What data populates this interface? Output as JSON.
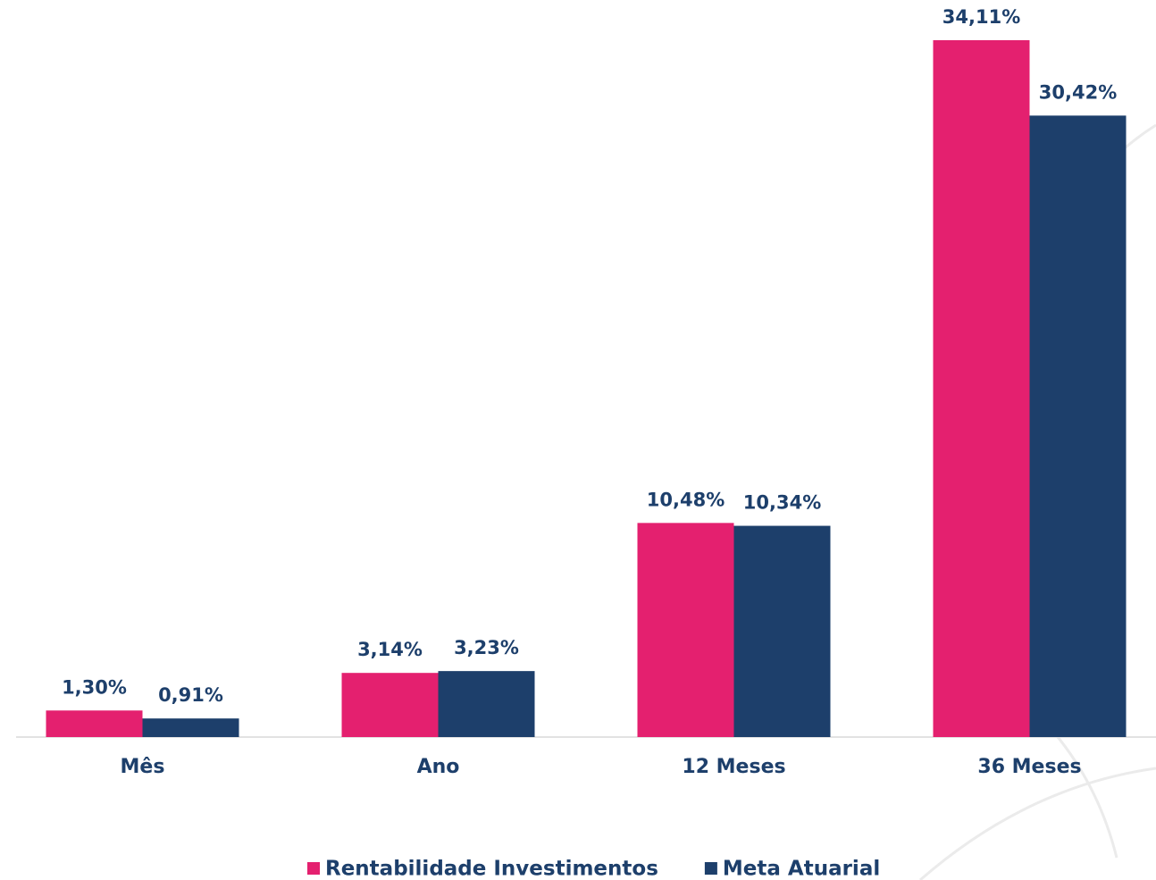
{
  "chart_data": {
    "type": "bar",
    "categories": [
      "Mês",
      "Ano",
      "12 Meses",
      "36 Meses"
    ],
    "series": [
      {
        "name": "Rentabilidade Investimentos",
        "color": "#e4206f",
        "values": [
          1.3,
          3.14,
          10.48,
          34.11
        ],
        "value_labels": [
          "1,30%",
          "3,14%",
          "10,48%",
          "34,11%"
        ]
      },
      {
        "name": "Meta Atuarial",
        "color": "#1d3f6b",
        "values": [
          0.91,
          3.23,
          10.34,
          30.42
        ],
        "value_labels": [
          "0,91%",
          "3,23%",
          "10,34%",
          "30,42%"
        ]
      }
    ]
  }
}
